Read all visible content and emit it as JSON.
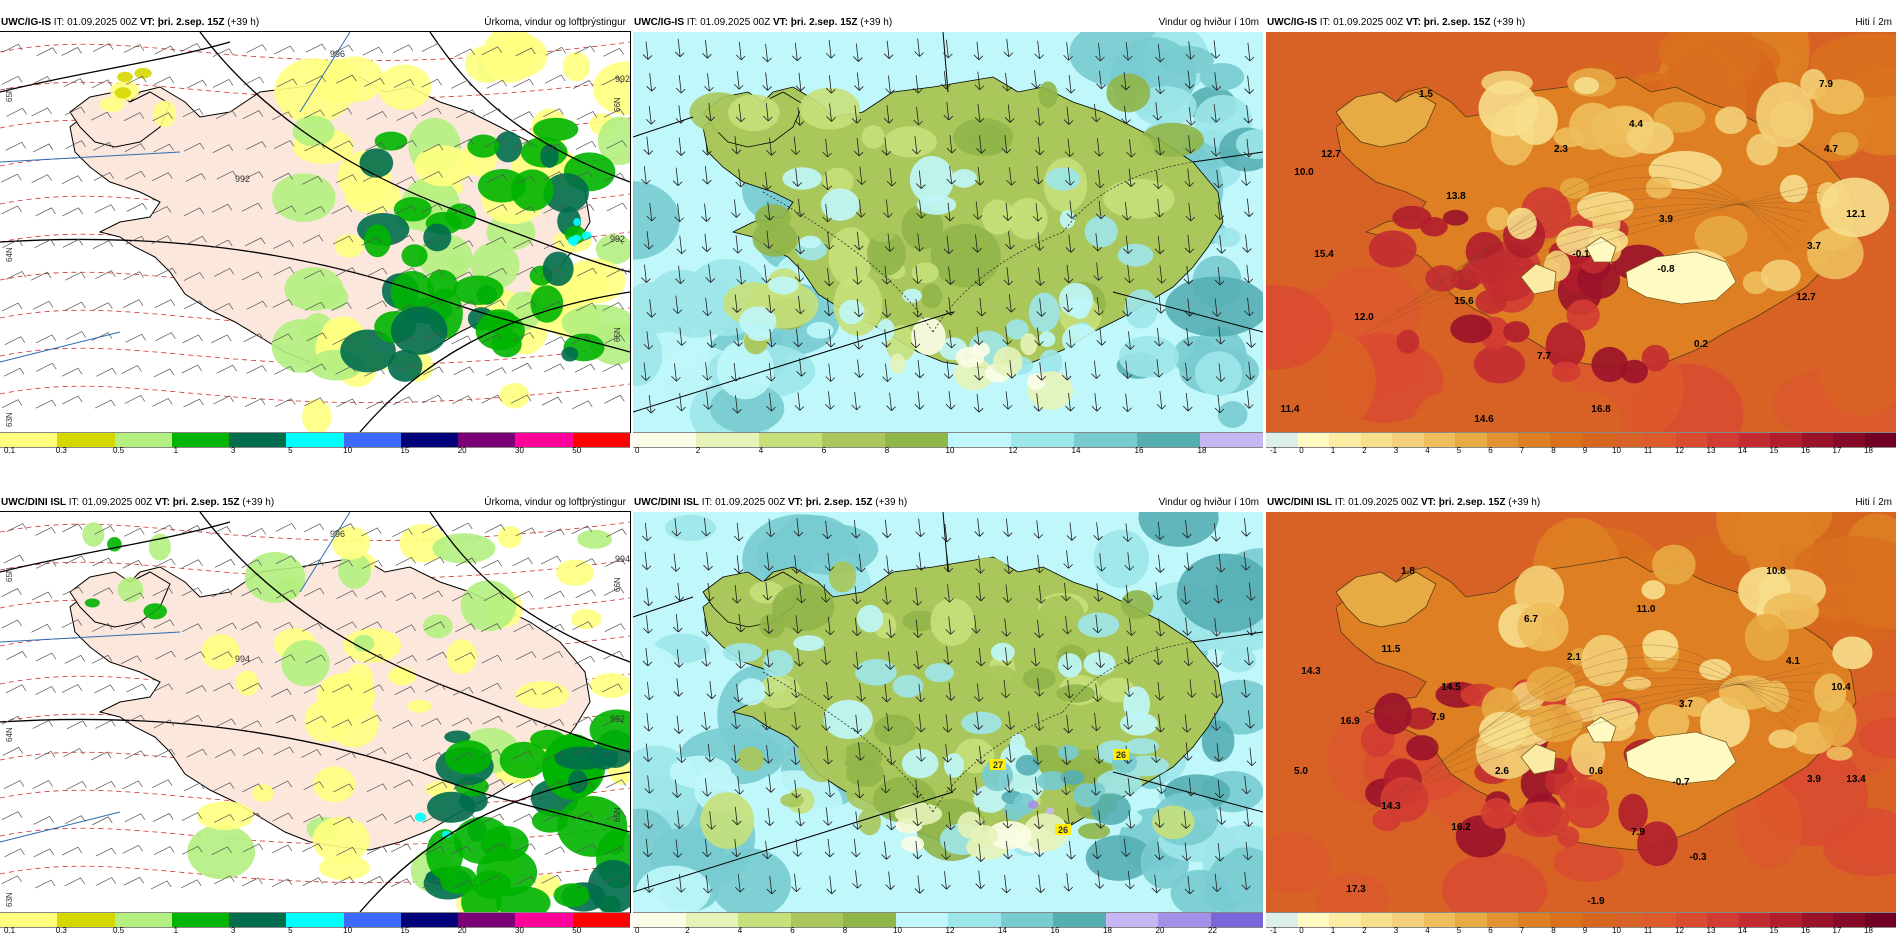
{
  "panels": [
    {
      "id": "top-precip",
      "model": "UWC/IG-IS",
      "it": "IT: 01.09.2025 00Z",
      "vt_label": "VT:",
      "vt_value": "þri. 2.sep. 15Z",
      "lead": "(+39 h)",
      "title": "Úrkoma, vindur og loftþrýstingur",
      "kind": "precip",
      "scale_ticks": [
        "0.1",
        "0.3",
        "0.5",
        "1",
        "3",
        "5",
        "10",
        "15",
        "20",
        "30",
        "50"
      ],
      "pressure_labels": [
        "996",
        "992",
        "992",
        "992"
      ],
      "lat_labels": [
        "65N",
        "64N",
        "66N",
        "63N",
        "65N"
      ]
    },
    {
      "id": "top-wind",
      "model": "UWC/IG-IS",
      "it": "IT: 01.09.2025 00Z",
      "vt_label": "VT:",
      "vt_value": "þri. 2.sep. 15Z",
      "lead": "(+39 h)",
      "title": "Vindur og hviður í 10m",
      "kind": "wind",
      "scale_ticks": [
        "0",
        "2",
        "4",
        "6",
        "8",
        "10",
        "12",
        "14",
        "16",
        "18"
      ],
      "gust_labels": []
    },
    {
      "id": "top-temp",
      "model": "UWC/IG-IS",
      "it": "IT: 01.09.2025 00Z",
      "vt_label": "VT:",
      "vt_value": "þri. 2.sep. 15Z",
      "lead": "(+39 h)",
      "title": "Hiti í 2m",
      "kind": "temp",
      "scale_ticks": [
        "-1",
        "0",
        "1",
        "2",
        "3",
        "4",
        "5",
        "6",
        "7",
        "8",
        "9",
        "10",
        "11",
        "12",
        "13",
        "14",
        "15",
        "16",
        "17",
        "18"
      ],
      "temp_labels": [
        "1.5",
        "7.9",
        "4.4",
        "12.7",
        "2.3",
        "4.7",
        "10.0",
        "13.8",
        "12.1",
        "3.9",
        "-0.1",
        "3.7",
        "15.4",
        "-0.8",
        "15.6",
        "12.7",
        "12.0",
        "0.2",
        "7.7",
        "11.4",
        "14.6",
        "16.8"
      ]
    },
    {
      "id": "bottom-precip",
      "model": "UWC/DINI ISL",
      "it": "IT: 01.09.2025 00Z",
      "vt_label": "VT:",
      "vt_value": "þri. 2.sep. 15Z",
      "lead": "(+39 h)",
      "title": "Úrkoma, vindur og loftþrýstingur",
      "kind": "precip",
      "scale_ticks": [
        "0.1",
        "0.3",
        "0.5",
        "1",
        "3",
        "5",
        "10",
        "15",
        "20",
        "30",
        "50"
      ],
      "pressure_labels": [
        "996",
        "994",
        "994",
        "992"
      ],
      "lat_labels": [
        "65N",
        "64N",
        "66N",
        "63N",
        "65N"
      ]
    },
    {
      "id": "bottom-wind",
      "model": "UWC/DINI ISL",
      "it": "IT: 01.09.2025 00Z",
      "vt_label": "VT:",
      "vt_value": "þri. 2.sep. 15Z",
      "lead": "(+39 h)",
      "title": "Vindur og hviður í 10m",
      "kind": "wind",
      "scale_ticks": [
        "0",
        "2",
        "4",
        "6",
        "8",
        "10",
        "12",
        "14",
        "16",
        "18",
        "20",
        "22"
      ],
      "gust_labels": [
        "27",
        "26",
        "26"
      ]
    },
    {
      "id": "bottom-temp",
      "model": "UWC/DINI ISL",
      "it": "IT: 01.09.2025 00Z",
      "vt_label": "VT:",
      "vt_value": "þri. 2.sep. 15Z",
      "lead": "(+39 h)",
      "title": "Hiti í 2m",
      "kind": "temp",
      "scale_ticks": [
        "-1",
        "0",
        "1",
        "2",
        "3",
        "4",
        "5",
        "6",
        "7",
        "8",
        "9",
        "10",
        "11",
        "12",
        "13",
        "14",
        "15",
        "16",
        "17",
        "18"
      ],
      "temp_labels": [
        "1.8",
        "10.8",
        "11.0",
        "6.7",
        "11.5",
        "2.1",
        "4.1",
        "14.3",
        "10.4",
        "14.5",
        "3.7",
        "7.9",
        "16.9",
        "5.0",
        "2.6",
        "0.6",
        "-0.7",
        "3.9",
        "13.4",
        "14.3",
        "7.9",
        "16.2",
        "-0.3",
        "17.3",
        "-1.9"
      ]
    }
  ],
  "colors": {
    "precip": [
      "#ffff80",
      "#d7d700",
      "#b4f080",
      "#00b400",
      "#006d4c",
      "#00ffff",
      "#3b6cff",
      "#00007a",
      "#7a0077",
      "#ff0098",
      "#ff0000"
    ],
    "wind": [
      "#fbfde6",
      "#e6f3b8",
      "#c6e07a",
      "#a9c75a",
      "#90b548",
      "#bff7fa",
      "#9de6ea",
      "#78cbd0",
      "#55aeb2",
      "#c5b6f4",
      "#a68fe6",
      "#7a66d6"
    ],
    "temp": [
      "#dcefe8",
      "#fffac2",
      "#fbeba4",
      "#f7df8c",
      "#f3d078",
      "#eebe5c",
      "#e8aa44",
      "#e39430",
      "#de7f24",
      "#d9701e",
      "#d6671e",
      "#d86226",
      "#dc5a2c",
      "#d94c30",
      "#d13c32",
      "#c22c30",
      "#b01e2c",
      "#9a122a",
      "#860a28",
      "#720024"
    ],
    "land_precip": "#fbe7dc",
    "sea": "#ffffff"
  }
}
